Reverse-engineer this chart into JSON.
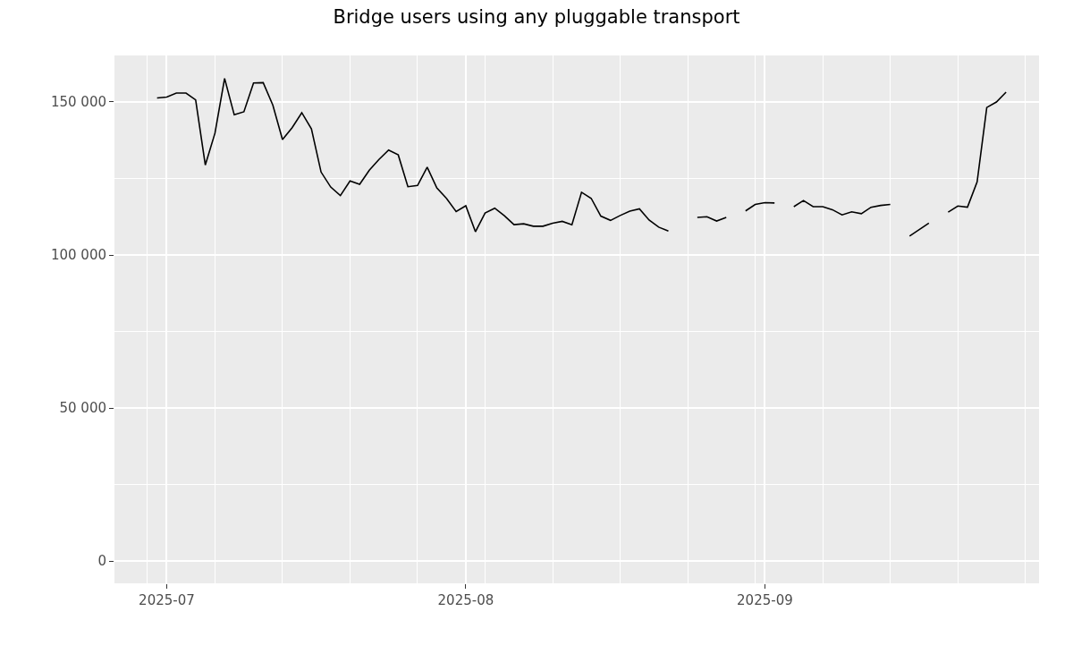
{
  "chart_data": {
    "type": "line",
    "title": "Bridge users using any pluggable transport",
    "x": [
      "2025-06-30",
      "2025-07-01",
      "2025-07-02",
      "2025-07-03",
      "2025-07-04",
      "2025-07-05",
      "2025-07-06",
      "2025-07-07",
      "2025-07-08",
      "2025-07-09",
      "2025-07-10",
      "2025-07-11",
      "2025-07-12",
      "2025-07-13",
      "2025-07-14",
      "2025-07-15",
      "2025-07-16",
      "2025-07-17",
      "2025-07-18",
      "2025-07-19",
      "2025-07-20",
      "2025-07-21",
      "2025-07-22",
      "2025-07-23",
      "2025-07-24",
      "2025-07-25",
      "2025-07-26",
      "2025-07-27",
      "2025-07-28",
      "2025-07-29",
      "2025-07-30",
      "2025-07-31",
      "2025-08-01",
      "2025-08-02",
      "2025-08-03",
      "2025-08-04",
      "2025-08-05",
      "2025-08-06",
      "2025-08-07",
      "2025-08-08",
      "2025-08-09",
      "2025-08-10",
      "2025-08-11",
      "2025-08-12",
      "2025-08-13",
      "2025-08-14",
      "2025-08-15",
      "2025-08-16",
      "2025-08-17",
      "2025-08-18",
      "2025-08-19",
      "2025-08-20",
      "2025-08-21",
      "2025-08-22",
      "2025-08-23",
      "2025-08-24",
      "2025-08-25",
      "2025-08-26",
      "2025-08-27",
      "2025-08-28",
      "2025-08-29",
      "2025-08-30",
      "2025-08-31",
      "2025-09-01",
      "2025-09-02",
      "2025-09-03",
      "2025-09-04",
      "2025-09-05",
      "2025-09-06",
      "2025-09-07",
      "2025-09-08",
      "2025-09-09",
      "2025-09-10",
      "2025-09-11",
      "2025-09-12",
      "2025-09-13",
      "2025-09-14",
      "2025-09-15",
      "2025-09-16",
      "2025-09-17",
      "2025-09-18",
      "2025-09-19",
      "2025-09-20",
      "2025-09-21",
      "2025-09-22",
      "2025-09-23",
      "2025-09-24",
      "2025-09-25",
      "2025-09-26"
    ],
    "series": [
      {
        "color": "#000000",
        "values": [
          151300,
          151600,
          152900,
          152900,
          150700,
          129400,
          139800,
          157700,
          145800,
          146800,
          156200,
          156300,
          149000,
          137700,
          141600,
          146500,
          141200,
          127100,
          122200,
          119400,
          124200,
          123100,
          127700,
          131200,
          134300,
          132700,
          122300,
          122700,
          128700,
          121900,
          118500,
          114200,
          116100,
          107600,
          113700,
          115300,
          112800,
          109900,
          110200,
          109400,
          109400,
          110400,
          111000,
          109900,
          120500,
          118500,
          112700,
          111300,
          112900,
          114300,
          115100,
          111400,
          109100,
          107800,
          null,
          null,
          112300,
          112500,
          111100,
          112300,
          null,
          114400,
          116500,
          117100,
          117000,
          null,
          115800,
          117800,
          115800,
          115800,
          114800,
          113100,
          114100,
          113500,
          115600,
          116200,
          116500,
          null,
          106200,
          108300,
          110400,
          null,
          114000,
          116000,
          115600,
          123900,
          148200,
          150000,
          153200
        ]
      }
    ],
    "xlim": [
      "2025-06-25T14:00",
      "2025-09-29T10:00"
    ],
    "xticks": [
      {
        "value": "2025-07-01",
        "label": "2025-07"
      },
      {
        "value": "2025-08-01",
        "label": "2025-08"
      },
      {
        "value": "2025-09-01",
        "label": "2025-09"
      }
    ],
    "ylim": [
      -7300,
      165200
    ],
    "yticks": [
      0,
      {
        "value": 50000,
        "label": "50 000"
      },
      {
        "value": 100000,
        "label": "100 000"
      },
      {
        "value": 150000,
        "label": "150 000"
      }
    ],
    "grid": true,
    "marker": "none",
    "line_style": "solid"
  }
}
